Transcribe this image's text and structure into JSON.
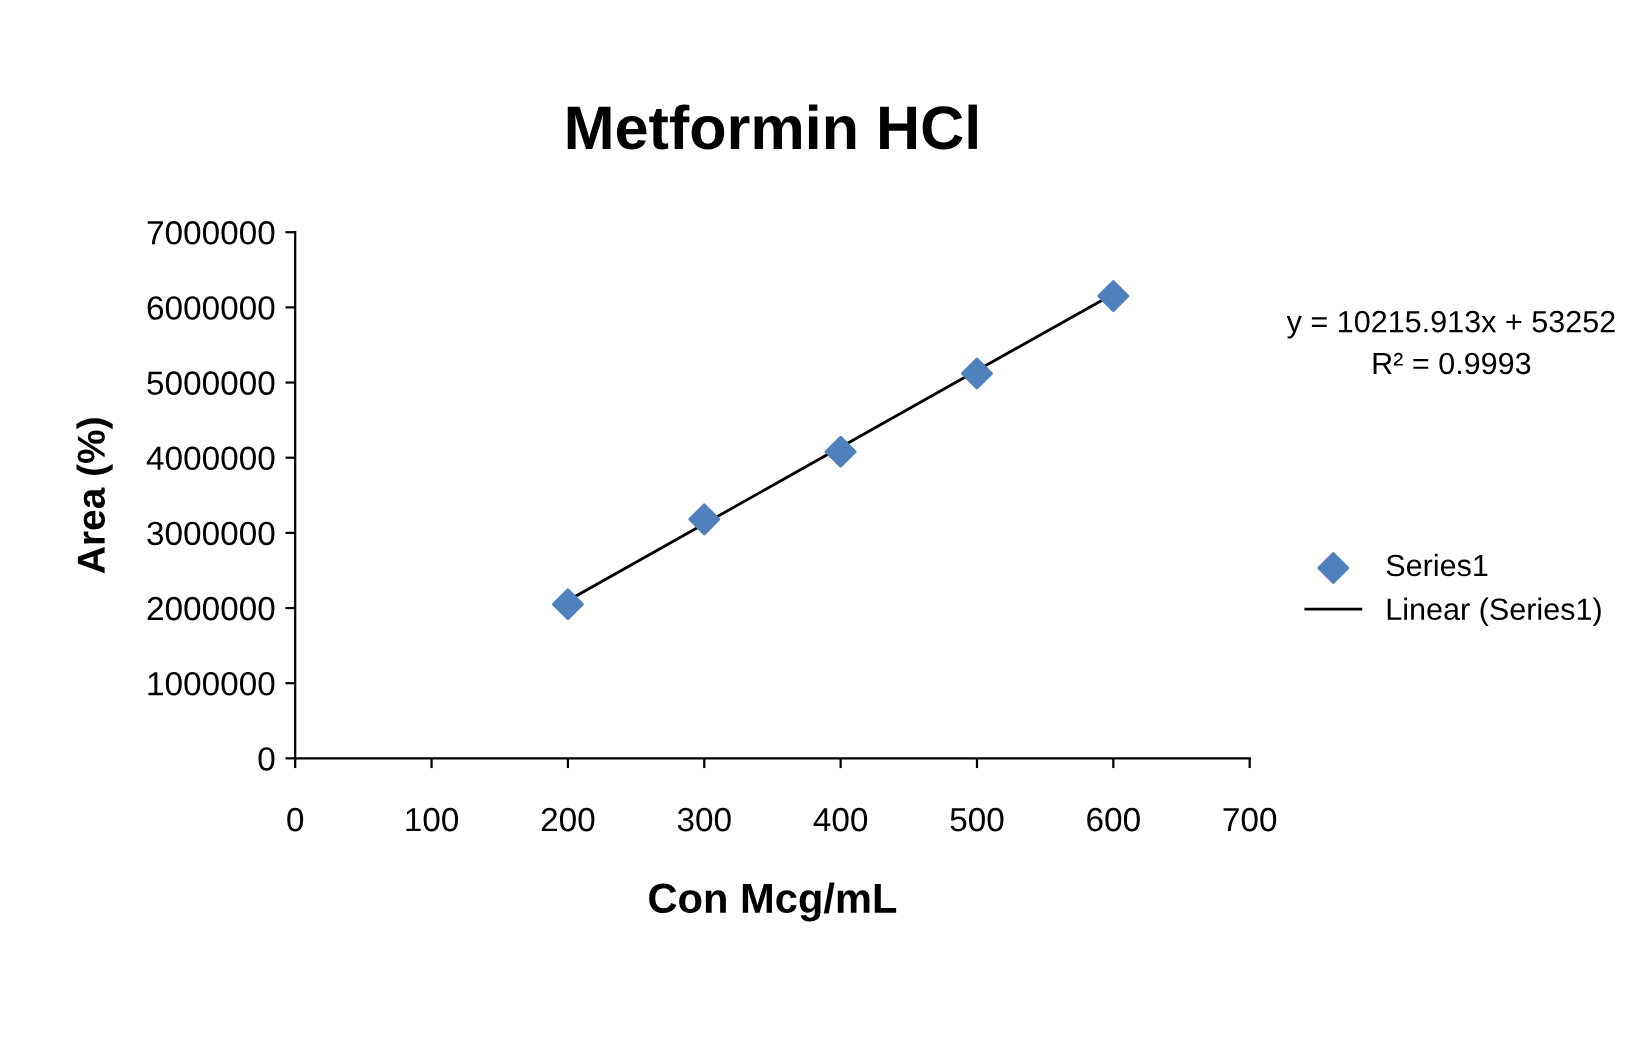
{
  "chart_data": {
    "type": "scatter",
    "title": "Metformin HCl",
    "xlabel": "Con Mcg/mL",
    "ylabel": "Area (%)",
    "series": [
      {
        "name": "Series1",
        "color": "#4f81bd",
        "marker": "diamond",
        "x": [
          200,
          300,
          400,
          500,
          600
        ],
        "values": [
          2050000,
          3180000,
          4080000,
          5120000,
          6150000
        ]
      },
      {
        "name": "Linear (Series1)",
        "color": "#000000",
        "type": "line",
        "line_style": "solid",
        "x": [
          200,
          600
        ],
        "values": [
          2100000,
          6180000
        ]
      }
    ],
    "xlim": [
      0,
      700
    ],
    "xticks": [
      0,
      100,
      200,
      300,
      400,
      500,
      600,
      700
    ],
    "ylim": [
      0,
      7000000
    ],
    "yticks": [
      0,
      1000000,
      2000000,
      3000000,
      4000000,
      5000000,
      6000000,
      7000000
    ],
    "grid": false,
    "legend": "right",
    "annotations": [
      "y = 10215.913x + 53252",
      "R² = 0.9993"
    ]
  }
}
